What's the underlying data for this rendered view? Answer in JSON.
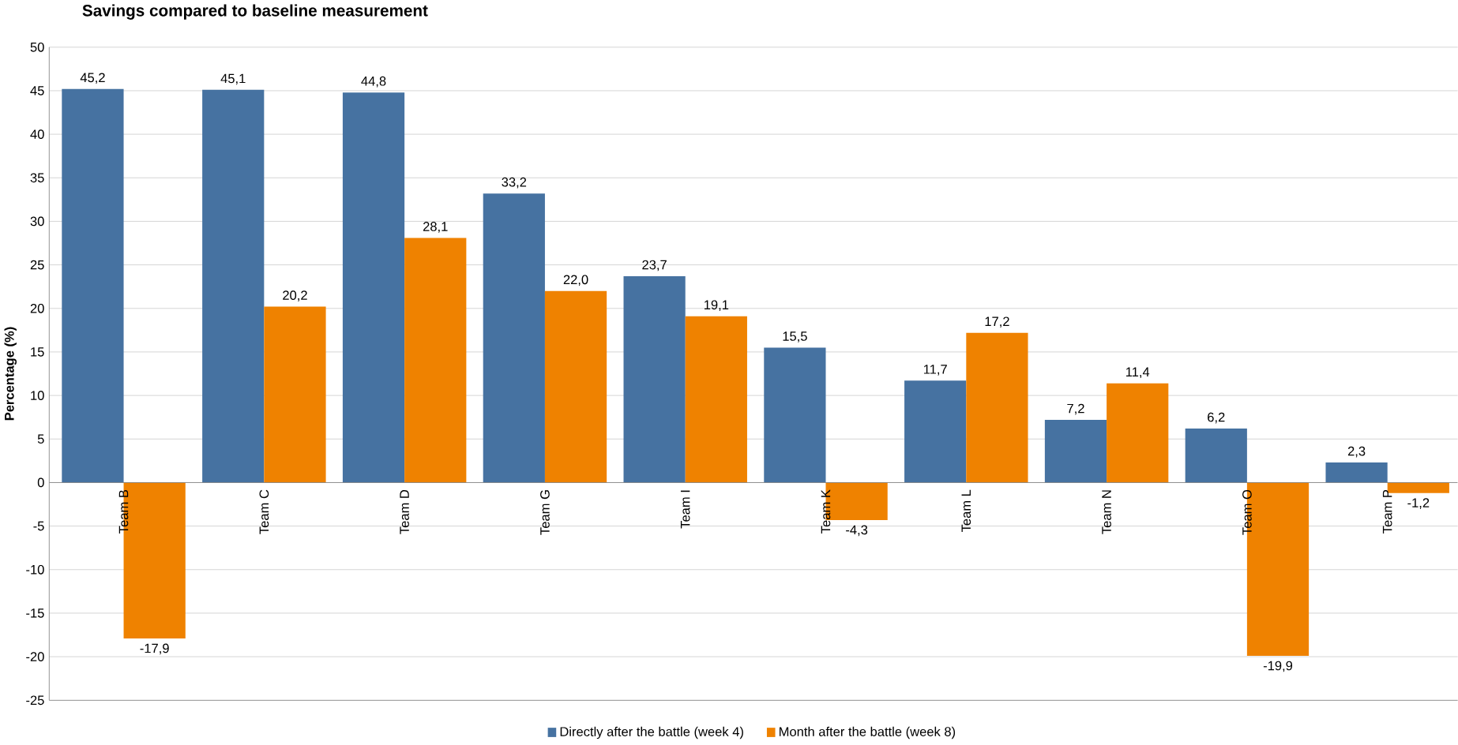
{
  "chart_data": {
    "type": "bar",
    "title": "Savings compared to baseline measurement",
    "ylabel": "Percentage (%)",
    "categories": [
      "Team B",
      "Team C",
      "Team D",
      "Team G",
      "Team I",
      "Team K",
      "Team L",
      "Team N",
      "Team O",
      "Team P"
    ],
    "series": [
      {
        "name": "Directly after the battle (week 4)",
        "color": "#4672a1",
        "values": [
          45.2,
          45.1,
          44.8,
          33.2,
          23.7,
          15.5,
          11.7,
          7.2,
          6.2,
          2.3
        ],
        "value_labels": [
          "45,2",
          "45,1",
          "44,8",
          "33,2",
          "23,7",
          "15,5",
          "11,7",
          "7,2",
          "6,2",
          "2,3"
        ]
      },
      {
        "name": "Month after the battle (week 8)",
        "color": "#ef8200",
        "values": [
          -17.9,
          20.2,
          28.1,
          22.0,
          19.1,
          -4.3,
          17.2,
          11.4,
          -19.9,
          -1.2
        ],
        "value_labels": [
          "-17,9",
          "20,2",
          "28,1",
          "22,0",
          "19,1",
          "-4,3",
          "17,2",
          "11,4",
          "-19,9",
          "-1,2"
        ]
      }
    ],
    "ylim": [
      -25,
      50
    ],
    "yticks": [
      -25,
      -20,
      -15,
      -10,
      -5,
      0,
      5,
      10,
      15,
      20,
      25,
      30,
      35,
      40,
      45,
      50
    ],
    "grid": "y",
    "legend": "bottom"
  }
}
